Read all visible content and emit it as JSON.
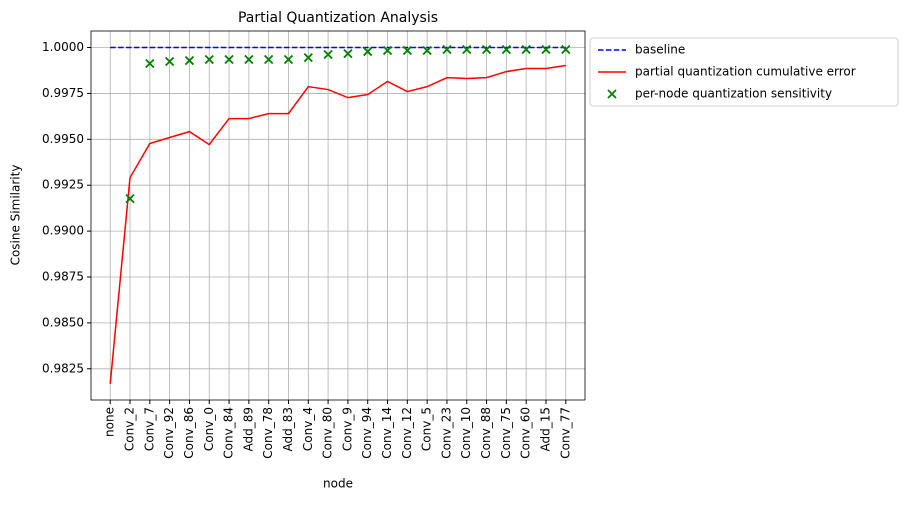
{
  "chart_data": {
    "type": "line",
    "title": "Partial Quantization Analysis",
    "x_label": "node",
    "y_label": "Cosine Similarity",
    "categories": [
      "none",
      "Conv_2",
      "Conv_7",
      "Conv_92",
      "Conv_86",
      "Conv_0",
      "Conv_84",
      "Add_89",
      "Conv_78",
      "Add_83",
      "Conv_4",
      "Conv_80",
      "Conv_9",
      "Conv_94",
      "Conv_14",
      "Conv_12",
      "Conv_5",
      "Conv_23",
      "Conv_10",
      "Conv_88",
      "Conv_75",
      "Conv_60",
      "Add_15",
      "Conv_77"
    ],
    "series": [
      {
        "name": "baseline",
        "color": "#0000ff",
        "kind": "line",
        "dashed": true,
        "values": [
          1,
          1,
          1,
          1,
          1,
          1,
          1,
          1,
          1,
          1,
          1,
          1,
          1,
          1,
          1,
          1,
          1,
          1,
          1,
          1,
          1,
          1,
          1,
          1
        ]
      },
      {
        "name": "partial quantization cumulative error",
        "color": "#ff0000",
        "kind": "line",
        "dashed": false,
        "values": [
          0.98168,
          0.99291,
          0.99477,
          0.9951,
          0.99542,
          0.99471,
          0.99613,
          0.99613,
          0.9964,
          0.9964,
          0.99787,
          0.99771,
          0.99727,
          0.99744,
          0.99815,
          0.9976,
          0.99787,
          0.99836,
          0.99831,
          0.99836,
          0.99869,
          0.99886,
          0.99886,
          0.99902
        ]
      },
      {
        "name": "per-node quantization sensitivity",
        "color": "#008000",
        "kind": "scatter",
        "dashed": false,
        "values": [
          null,
          0.99177,
          0.99913,
          0.99924,
          0.99929,
          0.99935,
          0.99935,
          0.99935,
          0.99935,
          0.99935,
          0.99945,
          0.99962,
          0.99967,
          0.99978,
          0.99984,
          0.99984,
          0.99984,
          0.99989,
          0.99989,
          0.99989,
          0.99989,
          0.99989,
          0.99989,
          0.99989
        ]
      }
    ],
    "ylim": [
      0.9808,
      1.0009
    ],
    "yticks": [
      0.9825,
      {
        "value": 0.985,
        "label": "0.9850"
      },
      0.9875,
      {
        "value": 0.99,
        "label": "0.9900"
      },
      0.9925,
      {
        "value": 0.995,
        "label": "0.9950"
      },
      0.9975,
      {
        "value": 1,
        "label": "1.0000"
      }
    ],
    "grid": true,
    "legend": "outside upper right"
  }
}
